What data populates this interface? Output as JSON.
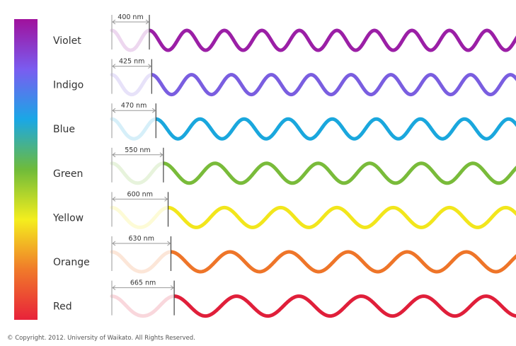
{
  "bands": [
    {
      "label": "Violet",
      "wavelength_label": "400 nm",
      "wavelength_nm": 400,
      "color": "#9b1fa6"
    },
    {
      "label": "Indigo",
      "wavelength_label": "425 nm",
      "wavelength_nm": 425,
      "color": "#7a5ee0"
    },
    {
      "label": "Blue",
      "wavelength_label": "470 nm",
      "wavelength_nm": 470,
      "color": "#1aa7dd"
    },
    {
      "label": "Green",
      "wavelength_label": "550 nm",
      "wavelength_nm": 550,
      "color": "#79bb3a"
    },
    {
      "label": "Yellow",
      "wavelength_label": "600 nm",
      "wavelength_nm": 600,
      "color": "#f2e61c"
    },
    {
      "label": "Orange",
      "wavelength_label": "630 nm",
      "wavelength_nm": 630,
      "color": "#ee7529"
    },
    {
      "label": "Red",
      "wavelength_label": "665 nm",
      "wavelength_nm": 665,
      "color": "#e01f3a"
    }
  ],
  "spectrum_bar_colors": [
    "#a0119c",
    "#7a5cf0",
    "#1aa7e6",
    "#6fbb3a",
    "#f4ee1e",
    "#f07a2a",
    "#e8223a"
  ],
  "copyright": "© Copyright. 2012. University of Waikato. All Rights Reserved."
}
